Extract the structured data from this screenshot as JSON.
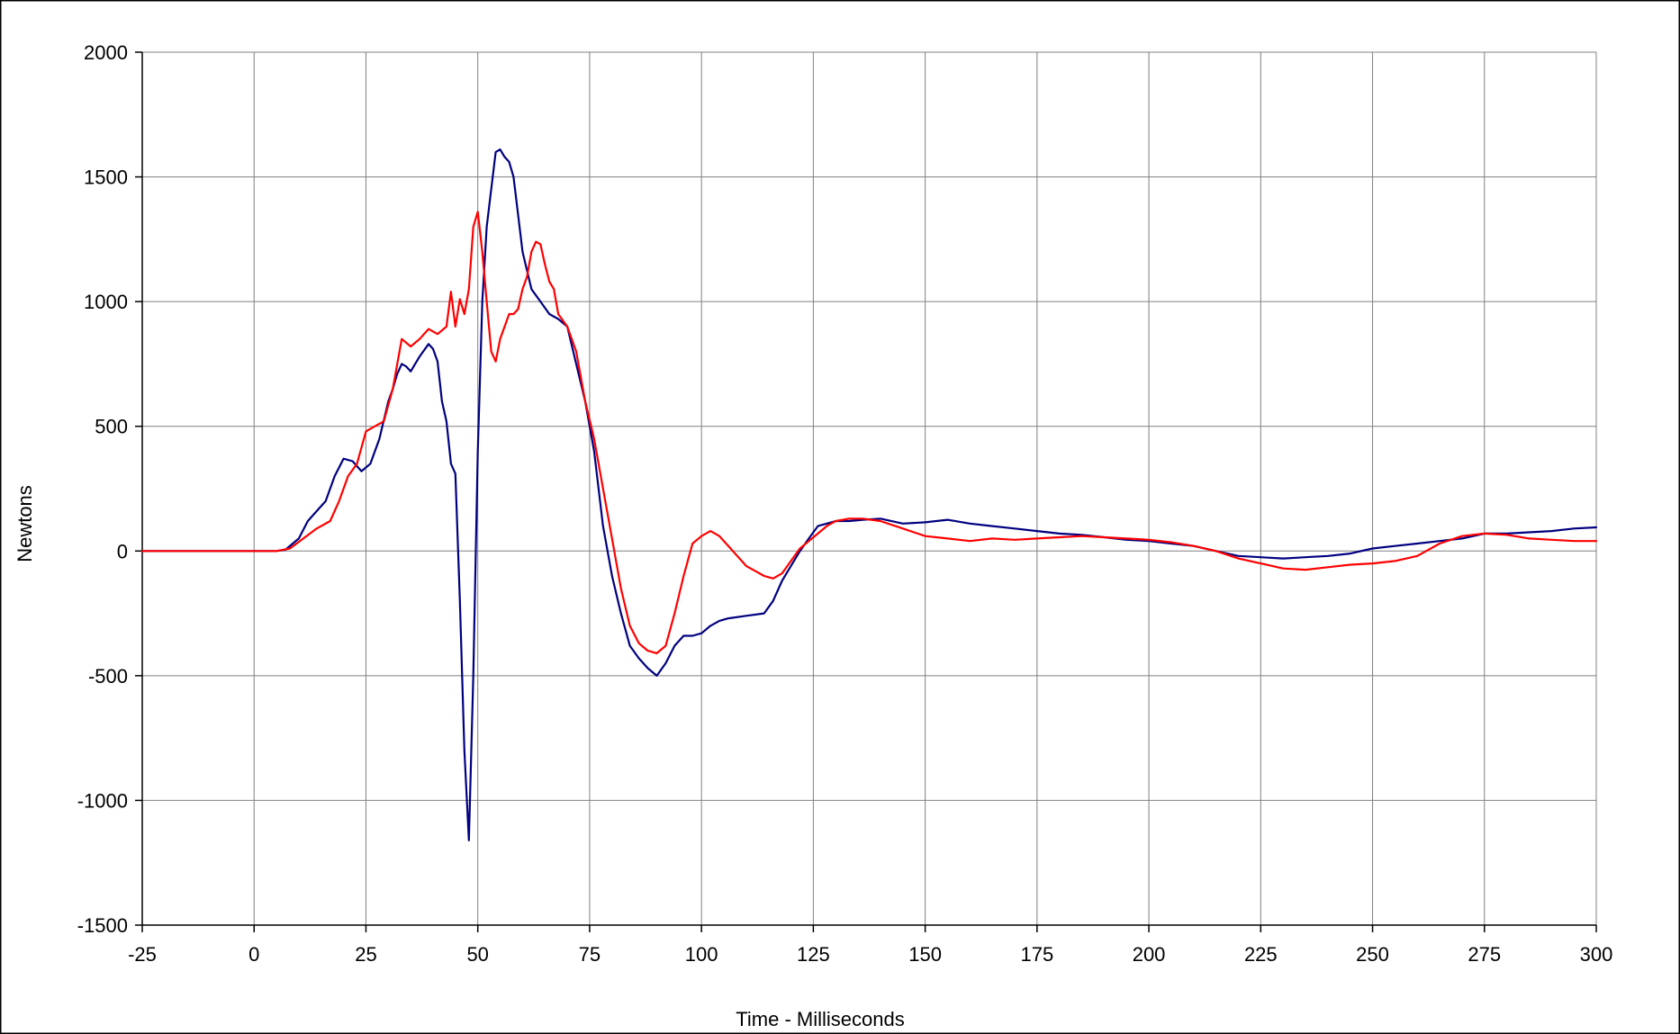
{
  "chart_data": {
    "type": "line",
    "xlabel": "Time - Milliseconds",
    "ylabel": "Newtons",
    "xlim": [
      -25,
      300
    ],
    "ylim": [
      -1500,
      2000
    ],
    "x_ticks": [
      -25,
      0,
      25,
      50,
      75,
      100,
      125,
      150,
      175,
      200,
      225,
      250,
      275,
      300
    ],
    "x_tick_labels": [
      "-25",
      "0",
      "25",
      "50",
      "75",
      "100",
      "125",
      "150",
      "175",
      "200",
      "225",
      "250",
      "275",
      "300"
    ],
    "y_ticks": [
      -1500,
      -1000,
      -500,
      0,
      500,
      1000,
      1500,
      2000
    ],
    "y_tick_labels": [
      "-1500",
      "-1000",
      "-500",
      "0",
      "500",
      "1000",
      "1500",
      "2000"
    ],
    "grid": true,
    "legend": "none",
    "series": [
      {
        "color": "#000080",
        "points": [
          [
            -25,
            0
          ],
          [
            0,
            0
          ],
          [
            5,
            0
          ],
          [
            7,
            5
          ],
          [
            10,
            50
          ],
          [
            12,
            120
          ],
          [
            14,
            160
          ],
          [
            16,
            200
          ],
          [
            18,
            300
          ],
          [
            20,
            370
          ],
          [
            22,
            360
          ],
          [
            24,
            320
          ],
          [
            26,
            350
          ],
          [
            28,
            450
          ],
          [
            30,
            600
          ],
          [
            31,
            650
          ],
          [
            32,
            710
          ],
          [
            33,
            750
          ],
          [
            34,
            740
          ],
          [
            35,
            720
          ],
          [
            37,
            780
          ],
          [
            39,
            830
          ],
          [
            40,
            810
          ],
          [
            41,
            760
          ],
          [
            42,
            600
          ],
          [
            43,
            520
          ],
          [
            44,
            350
          ],
          [
            45,
            310
          ],
          [
            46,
            -200
          ],
          [
            47,
            -800
          ],
          [
            48,
            -1160
          ],
          [
            49,
            -500
          ],
          [
            50,
            400
          ],
          [
            51,
            1000
          ],
          [
            52,
            1300
          ],
          [
            53,
            1450
          ],
          [
            54,
            1600
          ],
          [
            55,
            1610
          ],
          [
            56,
            1580
          ],
          [
            57,
            1560
          ],
          [
            58,
            1500
          ],
          [
            59,
            1350
          ],
          [
            60,
            1200
          ],
          [
            62,
            1050
          ],
          [
            64,
            1000
          ],
          [
            66,
            950
          ],
          [
            68,
            930
          ],
          [
            70,
            900
          ],
          [
            72,
            750
          ],
          [
            74,
            600
          ],
          [
            76,
            400
          ],
          [
            78,
            100
          ],
          [
            80,
            -100
          ],
          [
            82,
            -250
          ],
          [
            84,
            -380
          ],
          [
            86,
            -430
          ],
          [
            88,
            -470
          ],
          [
            90,
            -500
          ],
          [
            92,
            -450
          ],
          [
            94,
            -380
          ],
          [
            96,
            -340
          ],
          [
            98,
            -340
          ],
          [
            100,
            -330
          ],
          [
            102,
            -300
          ],
          [
            104,
            -280
          ],
          [
            106,
            -270
          ],
          [
            110,
            -260
          ],
          [
            114,
            -250
          ],
          [
            116,
            -200
          ],
          [
            118,
            -120
          ],
          [
            120,
            -60
          ],
          [
            122,
            0
          ],
          [
            124,
            50
          ],
          [
            126,
            100
          ],
          [
            128,
            110
          ],
          [
            130,
            120
          ],
          [
            133,
            120
          ],
          [
            136,
            125
          ],
          [
            140,
            130
          ],
          [
            145,
            110
          ],
          [
            150,
            115
          ],
          [
            155,
            125
          ],
          [
            160,
            110
          ],
          [
            165,
            100
          ],
          [
            170,
            90
          ],
          [
            175,
            80
          ],
          [
            180,
            70
          ],
          [
            185,
            65
          ],
          [
            190,
            55
          ],
          [
            195,
            45
          ],
          [
            200,
            40
          ],
          [
            205,
            30
          ],
          [
            210,
            20
          ],
          [
            215,
            0
          ],
          [
            220,
            -20
          ],
          [
            225,
            -25
          ],
          [
            230,
            -30
          ],
          [
            235,
            -25
          ],
          [
            240,
            -20
          ],
          [
            245,
            -10
          ],
          [
            250,
            10
          ],
          [
            255,
            20
          ],
          [
            260,
            30
          ],
          [
            265,
            40
          ],
          [
            270,
            50
          ],
          [
            275,
            70
          ],
          [
            280,
            70
          ],
          [
            285,
            75
          ],
          [
            290,
            80
          ],
          [
            295,
            90
          ],
          [
            300,
            95
          ]
        ]
      },
      {
        "color": "#ff0000",
        "points": [
          [
            -25,
            0
          ],
          [
            0,
            0
          ],
          [
            5,
            0
          ],
          [
            8,
            10
          ],
          [
            11,
            50
          ],
          [
            14,
            90
          ],
          [
            17,
            120
          ],
          [
            19,
            200
          ],
          [
            21,
            300
          ],
          [
            23,
            350
          ],
          [
            25,
            480
          ],
          [
            27,
            500
          ],
          [
            29,
            520
          ],
          [
            31,
            650
          ],
          [
            33,
            850
          ],
          [
            35,
            820
          ],
          [
            37,
            850
          ],
          [
            39,
            890
          ],
          [
            41,
            870
          ],
          [
            43,
            900
          ],
          [
            44,
            1040
          ],
          [
            45,
            900
          ],
          [
            46,
            1010
          ],
          [
            47,
            950
          ],
          [
            48,
            1050
          ],
          [
            49,
            1300
          ],
          [
            50,
            1360
          ],
          [
            51,
            1200
          ],
          [
            52,
            1000
          ],
          [
            53,
            800
          ],
          [
            54,
            760
          ],
          [
            55,
            850
          ],
          [
            56,
            900
          ],
          [
            57,
            950
          ],
          [
            58,
            950
          ],
          [
            59,
            970
          ],
          [
            60,
            1050
          ],
          [
            61,
            1100
          ],
          [
            62,
            1200
          ],
          [
            63,
            1240
          ],
          [
            64,
            1230
          ],
          [
            65,
            1150
          ],
          [
            66,
            1080
          ],
          [
            67,
            1050
          ],
          [
            68,
            950
          ],
          [
            70,
            900
          ],
          [
            72,
            800
          ],
          [
            74,
            600
          ],
          [
            76,
            450
          ],
          [
            78,
            250
          ],
          [
            80,
            50
          ],
          [
            82,
            -150
          ],
          [
            84,
            -300
          ],
          [
            86,
            -370
          ],
          [
            88,
            -400
          ],
          [
            90,
            -410
          ],
          [
            92,
            -380
          ],
          [
            94,
            -250
          ],
          [
            96,
            -100
          ],
          [
            98,
            30
          ],
          [
            100,
            60
          ],
          [
            102,
            80
          ],
          [
            104,
            60
          ],
          [
            106,
            20
          ],
          [
            108,
            -20
          ],
          [
            110,
            -60
          ],
          [
            114,
            -100
          ],
          [
            116,
            -110
          ],
          [
            118,
            -90
          ],
          [
            120,
            -40
          ],
          [
            122,
            10
          ],
          [
            124,
            40
          ],
          [
            126,
            70
          ],
          [
            128,
            100
          ],
          [
            130,
            120
          ],
          [
            133,
            130
          ],
          [
            136,
            130
          ],
          [
            140,
            120
          ],
          [
            145,
            90
          ],
          [
            150,
            60
          ],
          [
            155,
            50
          ],
          [
            160,
            40
          ],
          [
            165,
            50
          ],
          [
            170,
            45
          ],
          [
            175,
            50
          ],
          [
            180,
            55
          ],
          [
            185,
            60
          ],
          [
            190,
            55
          ],
          [
            195,
            50
          ],
          [
            200,
            45
          ],
          [
            205,
            35
          ],
          [
            210,
            20
          ],
          [
            215,
            0
          ],
          [
            220,
            -30
          ],
          [
            225,
            -50
          ],
          [
            230,
            -70
          ],
          [
            235,
            -75
          ],
          [
            240,
            -65
          ],
          [
            245,
            -55
          ],
          [
            250,
            -50
          ],
          [
            255,
            -40
          ],
          [
            260,
            -20
          ],
          [
            265,
            30
          ],
          [
            270,
            60
          ],
          [
            275,
            70
          ],
          [
            280,
            65
          ],
          [
            285,
            50
          ],
          [
            290,
            45
          ],
          [
            295,
            40
          ],
          [
            300,
            40
          ]
        ]
      }
    ]
  }
}
